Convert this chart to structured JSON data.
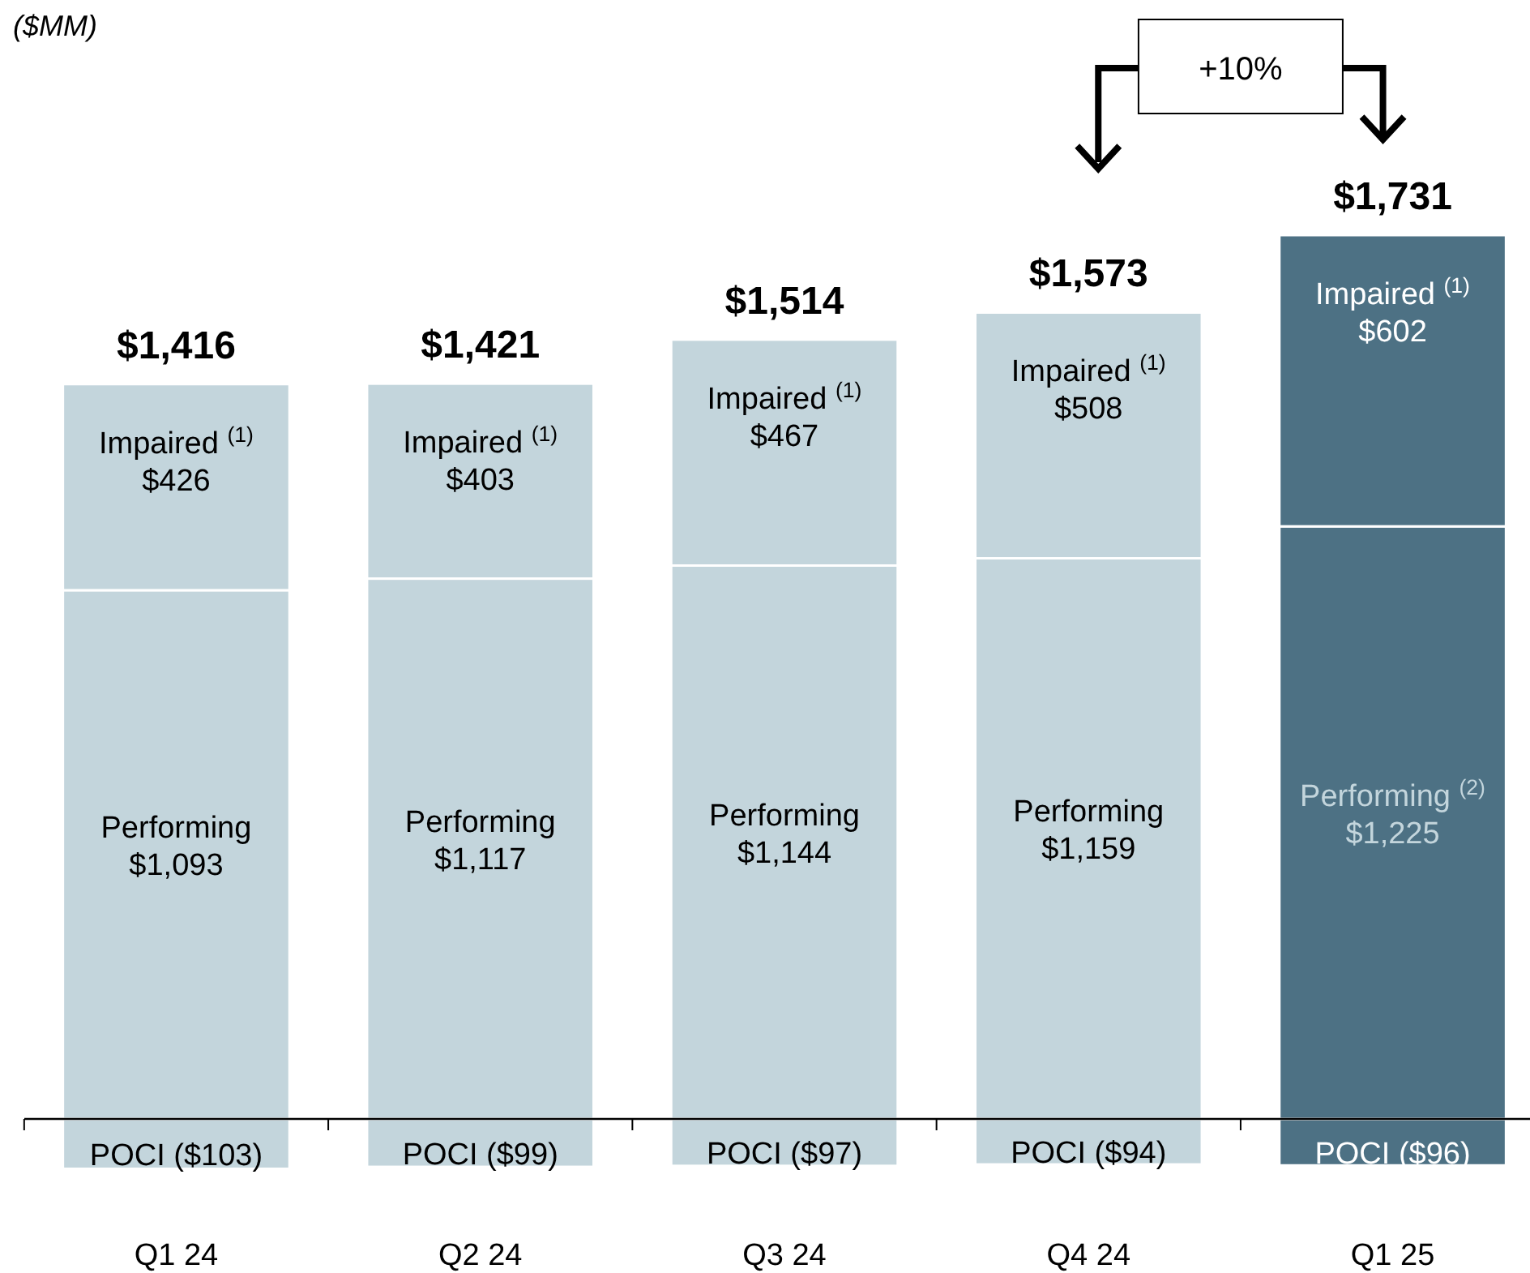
{
  "chart_data": {
    "type": "bar",
    "stacked": true,
    "categories": [
      "Q1 24",
      "Q2 24",
      "Q3 24",
      "Q4 24",
      "Q1 25"
    ],
    "series": [
      {
        "colors": [
          "#c3d5dc",
          "#c3d5dc",
          "#c3d5dc",
          "#c3d5dc",
          "#4d7184"
        ],
        "values": [
          -103,
          -99,
          -97,
          -94,
          -96
        ],
        "value_labels": [
          "POCI  ($103)",
          "POCI  ($99)",
          "POCI  ($97)",
          "POCI  ($94)",
          "POCI  ($96)"
        ]
      },
      {
        "colors": [
          "#c3d5dc",
          "#c3d5dc",
          "#c3d5dc",
          "#c3d5dc",
          "#4d7184"
        ],
        "values": [
          1093,
          1117,
          1144,
          1159,
          1225
        ],
        "value_labels": [
          "Performing\n$1,093",
          "Performing\n$1,117",
          "Performing\n$1,144",
          "Performing\n$1,159",
          "Performing $^{(2)}$\n$1,225"
        ]
      },
      {
        "colors": [
          "#c3d5dc",
          "#c3d5dc",
          "#c3d5dc",
          "#c3d5dc",
          "#4d7184"
        ],
        "values": [
          426,
          403,
          467,
          508,
          602
        ],
        "value_labels": [
          "Impaired $^{(1)}$\n$426",
          "Impaired $^{(1)}$\n$403",
          "Impaired $^{(1)}$\n$467",
          "Impaired $^{(1)}$\n$508",
          "Impaired $^{(1)}$\n$602"
        ]
      }
    ],
    "totals": [
      "$1,416",
      "$1,421",
      "$1,514",
      "$1,573",
      "$1,731"
    ],
    "annotations": [
      "($MM)",
      "+10%"
    ]
  }
}
